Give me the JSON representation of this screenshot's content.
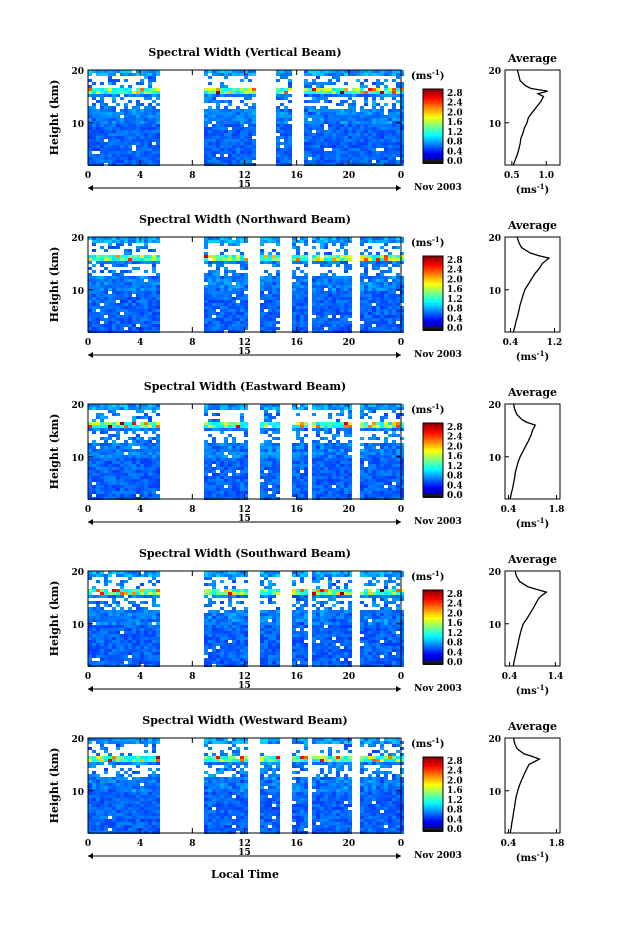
{
  "figure": {
    "xlabel": "Local Time",
    "date_label": "Nov 2003",
    "day_label": "15",
    "colorbar_unit_base": "(ms",
    "colorbar_unit_exp": "-1",
    "avg_title": "Average",
    "avg_unit_base": "(ms",
    "avg_unit_exp": "-1"
  },
  "chart_data": [
    {
      "type": "heatmap",
      "title": "Spectral Width (Vertical Beam)",
      "ylabel": "Height (km)",
      "xlabel": "Local Time",
      "x_ticks": [
        "0",
        "4",
        "8",
        "12",
        "16",
        "20",
        "0"
      ],
      "y_ticks": [
        "20",
        "10"
      ],
      "ylim": [
        2,
        20
      ],
      "xlim": [
        0,
        24
      ],
      "gaps": [
        [
          5.5,
          8.8
        ],
        [
          12.9,
          14.5
        ],
        [
          15.7,
          16.5
        ]
      ],
      "colorbar": {
        "ticks": [
          "2.8",
          "2.4",
          "2.0",
          "1.6",
          "1.2",
          "0.8",
          "0.4",
          "0.0"
        ],
        "range": [
          0,
          2.8
        ]
      },
      "average": {
        "xticks": [
          "0.5",
          "1.0"
        ],
        "xlim": [
          0.4,
          1.2
        ],
        "ylim": [
          2,
          20
        ],
        "profile": [
          [
            2,
            0.52
          ],
          [
            3,
            0.55
          ],
          [
            4,
            0.58
          ],
          [
            5,
            0.6
          ],
          [
            6,
            0.62
          ],
          [
            7,
            0.63
          ],
          [
            8,
            0.66
          ],
          [
            9,
            0.68
          ],
          [
            10,
            0.72
          ],
          [
            11,
            0.74
          ],
          [
            12,
            0.8
          ],
          [
            13,
            0.86
          ],
          [
            14,
            0.92
          ],
          [
            15,
            0.96
          ],
          [
            15.5,
            0.88
          ],
          [
            16,
            1.02
          ],
          [
            16.5,
            0.78
          ],
          [
            17,
            0.7
          ],
          [
            18,
            0.62
          ],
          [
            19,
            0.6
          ],
          [
            20,
            0.58
          ]
        ]
      }
    },
    {
      "type": "heatmap",
      "title": "Spectral Width (Northward Beam)",
      "ylabel": "Height (km)",
      "xlabel": "Local Time",
      "x_ticks": [
        "0",
        "4",
        "8",
        "12",
        "16",
        "20",
        "0"
      ],
      "y_ticks": [
        "20",
        "10"
      ],
      "ylim": [
        2,
        20
      ],
      "xlim": [
        0,
        24
      ],
      "gaps": [
        [
          5.5,
          8.8
        ],
        [
          12.3,
          13.1
        ],
        [
          14.8,
          15.7
        ],
        [
          17.0,
          17.3
        ],
        [
          20.2,
          21.0
        ]
      ],
      "colorbar": {
        "ticks": [
          "2.8",
          "2.4",
          "2.0",
          "1.6",
          "1.2",
          "0.8",
          "0.4",
          "0.0"
        ],
        "range": [
          0,
          2.8
        ]
      },
      "average": {
        "xticks": [
          "0.4",
          "1.2"
        ],
        "xlim": [
          0.3,
          1.3
        ],
        "ylim": [
          2,
          20
        ],
        "profile": [
          [
            2,
            0.45
          ],
          [
            3,
            0.48
          ],
          [
            4,
            0.5
          ],
          [
            5,
            0.53
          ],
          [
            6,
            0.55
          ],
          [
            7,
            0.57
          ],
          [
            8,
            0.6
          ],
          [
            9,
            0.63
          ],
          [
            10,
            0.66
          ],
          [
            11,
            0.72
          ],
          [
            12,
            0.78
          ],
          [
            13,
            0.84
          ],
          [
            14,
            0.92
          ],
          [
            15,
            0.98
          ],
          [
            16,
            1.1
          ],
          [
            16.5,
            0.9
          ],
          [
            17,
            0.75
          ],
          [
            18,
            0.6
          ],
          [
            19,
            0.55
          ],
          [
            20,
            0.52
          ]
        ]
      }
    },
    {
      "type": "heatmap",
      "title": "Spectral Width (Eastward Beam)",
      "ylabel": "Height (km)",
      "xlabel": "Local Time",
      "x_ticks": [
        "0",
        "4",
        "8",
        "12",
        "16",
        "20",
        "0"
      ],
      "y_ticks": [
        "20",
        "10"
      ],
      "ylim": [
        2,
        20
      ],
      "xlim": [
        0,
        24
      ],
      "gaps": [
        [
          5.5,
          8.8
        ],
        [
          12.3,
          13.1
        ],
        [
          14.8,
          15.7
        ],
        [
          16.8,
          17.3
        ],
        [
          20.2,
          21.0
        ]
      ],
      "colorbar": {
        "ticks": [
          "2.8",
          "2.4",
          "2.0",
          "1.6",
          "1.2",
          "0.8",
          "0.4",
          "0.0"
        ],
        "range": [
          0,
          2.8
        ]
      },
      "average": {
        "xticks": [
          "0.4",
          "1.8"
        ],
        "xlim": [
          0.3,
          1.9
        ],
        "ylim": [
          2,
          20
        ],
        "profile": [
          [
            2,
            0.45
          ],
          [
            3,
            0.48
          ],
          [
            4,
            0.52
          ],
          [
            5,
            0.55
          ],
          [
            6,
            0.58
          ],
          [
            7,
            0.6
          ],
          [
            8,
            0.64
          ],
          [
            9,
            0.68
          ],
          [
            10,
            0.74
          ],
          [
            11,
            0.82
          ],
          [
            12,
            0.9
          ],
          [
            13,
            0.98
          ],
          [
            14,
            1.05
          ],
          [
            15,
            1.1
          ],
          [
            16,
            1.18
          ],
          [
            16.5,
            0.95
          ],
          [
            17,
            0.8
          ],
          [
            18,
            0.65
          ],
          [
            19,
            0.58
          ],
          [
            20,
            0.55
          ]
        ]
      }
    },
    {
      "type": "heatmap",
      "title": "Spectral Width (Southward Beam)",
      "ylabel": "Height (km)",
      "xlabel": "Local Time",
      "x_ticks": [
        "0",
        "4",
        "8",
        "12",
        "16",
        "20",
        "0"
      ],
      "y_ticks": [
        "20",
        "10"
      ],
      "ylim": [
        2,
        20
      ],
      "xlim": [
        0,
        24
      ],
      "gaps": [
        [
          5.5,
          8.8
        ],
        [
          12.3,
          13.1
        ],
        [
          14.8,
          15.7
        ],
        [
          16.8,
          17.3
        ],
        [
          20.2,
          21.0
        ]
      ],
      "colorbar": {
        "ticks": [
          "2.8",
          "2.4",
          "2.0",
          "1.6",
          "1.2",
          "0.8",
          "0.4",
          "0.0"
        ],
        "range": [
          0,
          2.8
        ]
      },
      "average": {
        "xticks": [
          "0.4",
          "1.4"
        ],
        "xlim": [
          0.3,
          1.5
        ],
        "ylim": [
          2,
          20
        ],
        "profile": [
          [
            2,
            0.48
          ],
          [
            3,
            0.5
          ],
          [
            4,
            0.53
          ],
          [
            5,
            0.55
          ],
          [
            6,
            0.58
          ],
          [
            7,
            0.6
          ],
          [
            8,
            0.63
          ],
          [
            9,
            0.66
          ],
          [
            10,
            0.7
          ],
          [
            11,
            0.78
          ],
          [
            12,
            0.85
          ],
          [
            13,
            0.92
          ],
          [
            14,
            0.98
          ],
          [
            15,
            1.05
          ],
          [
            16,
            1.2
          ],
          [
            16.5,
            1.0
          ],
          [
            17,
            0.8
          ],
          [
            18,
            0.62
          ],
          [
            19,
            0.55
          ],
          [
            20,
            0.52
          ]
        ]
      }
    },
    {
      "type": "heatmap",
      "title": "Spectral Width (Westward Beam)",
      "ylabel": "Height (km)",
      "xlabel": "Local Time",
      "x_ticks": [
        "0",
        "4",
        "8",
        "12",
        "16",
        "20",
        "0"
      ],
      "y_ticks": [
        "20",
        "10"
      ],
      "ylim": [
        2,
        20
      ],
      "xlim": [
        0,
        24
      ],
      "gaps": [
        [
          5.5,
          8.8
        ],
        [
          12.3,
          13.1
        ],
        [
          14.8,
          15.7
        ],
        [
          16.8,
          17.3
        ],
        [
          20.2,
          21.0
        ]
      ],
      "colorbar": {
        "ticks": [
          "2.8",
          "2.4",
          "2.0",
          "1.6",
          "1.2",
          "0.8",
          "0.4",
          "0.0"
        ],
        "range": [
          0,
          2.8
        ]
      },
      "average": {
        "xticks": [
          "0.4",
          "1.8"
        ],
        "xlim": [
          0.3,
          1.9
        ],
        "ylim": [
          2,
          20
        ],
        "profile": [
          [
            2,
            0.45
          ],
          [
            3,
            0.48
          ],
          [
            4,
            0.5
          ],
          [
            5,
            0.53
          ],
          [
            6,
            0.55
          ],
          [
            7,
            0.58
          ],
          [
            8,
            0.6
          ],
          [
            9,
            0.63
          ],
          [
            10,
            0.67
          ],
          [
            11,
            0.72
          ],
          [
            12,
            0.78
          ],
          [
            13,
            0.85
          ],
          [
            14,
            0.92
          ],
          [
            15,
            1.0
          ],
          [
            16,
            1.3
          ],
          [
            16.5,
            1.1
          ],
          [
            17,
            0.85
          ],
          [
            18,
            0.65
          ],
          [
            19,
            0.58
          ],
          [
            20,
            0.55
          ]
        ]
      }
    }
  ]
}
